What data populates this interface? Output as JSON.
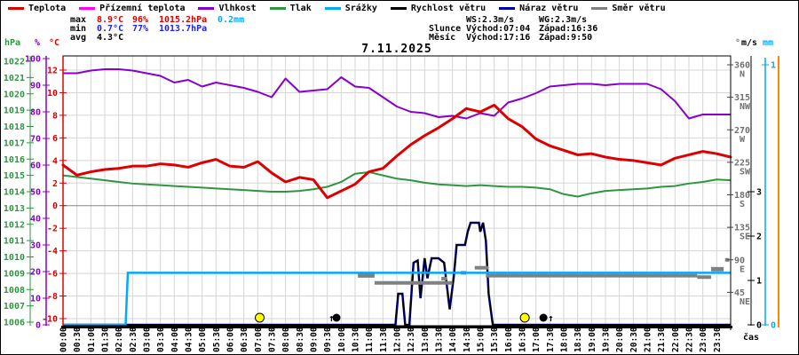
{
  "title": "7.11.2025",
  "colors": {
    "temperature": "#dd0000",
    "ground_temperature": "#ff00ff",
    "humidity": "#8800cc",
    "pressure": "#2e9640",
    "rain": "#00aaff",
    "wind_speed": "#000000",
    "wind_gust": "#0000aa",
    "wind_direction": "#808080",
    "stat_max": "#dd0000",
    "stat_min": "#2222ee",
    "stat_text": "#000000",
    "sun_marker": "#ffff00",
    "moon_marker": "#000000",
    "extra_axis_orange": "#ff8800",
    "grid": "#d6d6d6",
    "zero_line": "#888888",
    "axis_dir_text": "#707070"
  },
  "legend": {
    "items": [
      {
        "label": "Teplota",
        "color_key": "temperature"
      },
      {
        "label": "Přízemní teplota",
        "color_key": "ground_temperature"
      },
      {
        "label": "Vlhkost",
        "color_key": "humidity"
      },
      {
        "label": "Tlak",
        "color_key": "pressure"
      },
      {
        "label": "Srážky",
        "color_key": "rain"
      },
      {
        "label": "Rychlost větru",
        "color_key": "wind_speed"
      },
      {
        "label": "Náraz větru",
        "color_key": "wind_gust"
      },
      {
        "label": "Směr větru",
        "color_key": "wind_direction"
      }
    ]
  },
  "stats": {
    "left_rows": [
      {
        "label": "max",
        "values": [
          {
            "text": "8.9°C",
            "color_key": "stat_max",
            "cls": "w-t"
          },
          {
            "text": "96%",
            "color_key": "stat_max",
            "cls": "w-h"
          },
          {
            "text": "1015.2hPa",
            "color_key": "stat_max",
            "cls": "w-p"
          },
          {
            "text": "0.2mm",
            "color_key": "rain",
            "cls": ""
          }
        ]
      },
      {
        "label": "min",
        "values": [
          {
            "text": "0.7°C",
            "color_key": "stat_min",
            "cls": "w-t"
          },
          {
            "text": "77%",
            "color_key": "stat_min",
            "cls": "w-h"
          },
          {
            "text": "1013.7hPa",
            "color_key": "stat_min",
            "cls": "w-p"
          }
        ]
      },
      {
        "label": "avg",
        "values": [
          {
            "text": "4.3°C",
            "color_key": "stat_text",
            "cls": "w-t"
          }
        ]
      }
    ],
    "right_rows": [
      {
        "label": "",
        "col1": "WS:2.3m/s",
        "col2": "WG:2.3m/s"
      },
      {
        "label": "Slunce",
        "col1": "Východ:07:04",
        "col2": "Západ:16:36"
      },
      {
        "label": "Měsíc",
        "col1": "Východ:17:16",
        "col2": "Západ:9:50"
      }
    ]
  },
  "chart_data": {
    "type": "line",
    "title": "7.11.2025",
    "x_axis_label": "čas",
    "x_hours_range": [
      0,
      24
    ],
    "x_tick_labels": [
      "00:00",
      "00:30",
      "01:00",
      "01:30",
      "02:00",
      "02:30",
      "03:00",
      "03:30",
      "04:00",
      "04:30",
      "05:00",
      "05:30",
      "06:00",
      "06:30",
      "07:00",
      "07:30",
      "08:00",
      "08:30",
      "09:00",
      "09:30",
      "10:00",
      "10:30",
      "11:00",
      "11:30",
      "12:00",
      "12:30",
      "13:00",
      "13:30",
      "14:00",
      "14:30",
      "15:00",
      "15:30",
      "16:00",
      "16:30",
      "17:00",
      "17:30",
      "18:00",
      "18:30",
      "19:00",
      "19:30",
      "20:00",
      "20:30",
      "21:00",
      "21:30",
      "22:00",
      "22:30",
      "23:00",
      "23:30"
    ],
    "axes": {
      "temperature": {
        "title": "°C",
        "min": -10,
        "max": 12,
        "step": 2
      },
      "humidity": {
        "title": "%",
        "min": 0,
        "max": 100,
        "step": 10
      },
      "pressure": {
        "title": "hPa",
        "min": 1006,
        "max": 1022,
        "step": 1
      },
      "wind": {
        "title": "m/s",
        "ticks": [
          0,
          1,
          2,
          3
        ]
      },
      "rain": {
        "title": "mm",
        "ticks": [
          0,
          1
        ]
      },
      "direction": {
        "title": "°",
        "ticks": [
          {
            "deg": 360,
            "label": "N"
          },
          {
            "deg": 315,
            "label": "NW"
          },
          {
            "deg": 270,
            "label": "W"
          },
          {
            "deg": 225,
            "label": "SW"
          },
          {
            "deg": 180,
            "label": "S"
          },
          {
            "deg": 135,
            "label": "SE"
          },
          {
            "deg": 90,
            "label": "E"
          },
          {
            "deg": 45,
            "label": "NE"
          }
        ]
      }
    },
    "series": {
      "temperature": {
        "name": "Teplota",
        "unit": "°C",
        "step_hours": 0.5,
        "values": [
          3.6,
          2.7,
          3.0,
          3.2,
          3.3,
          3.5,
          3.5,
          3.7,
          3.6,
          3.4,
          3.8,
          4.1,
          3.5,
          3.4,
          3.9,
          2.9,
          2.1,
          2.5,
          2.3,
          0.7,
          1.3,
          1.9,
          3.0,
          3.3,
          4.4,
          5.4,
          6.2,
          6.9,
          7.7,
          8.6,
          8.3,
          8.9,
          7.7,
          7.0,
          5.9,
          5.3,
          4.9,
          4.5,
          4.6,
          4.3,
          4.1,
          4.0,
          3.8,
          3.6,
          4.2,
          4.5,
          4.8,
          4.6,
          4.3
        ]
      },
      "ground_temperature": {
        "name": "Přízemní teplota",
        "unit": "°C",
        "values": []
      },
      "humidity": {
        "name": "Vlhkost",
        "unit": "%",
        "step_hours": 0.5,
        "values": [
          94.5,
          94.5,
          95.5,
          96,
          96,
          95.5,
          94.5,
          93.5,
          91,
          92,
          89.5,
          91,
          90,
          89,
          87.5,
          85.5,
          92.5,
          87.5,
          88,
          88.5,
          93,
          89.5,
          89,
          85.5,
          82,
          80,
          79.5,
          78,
          78.5,
          77.5,
          79.5,
          78.5,
          83.5,
          85,
          87,
          89.5,
          90,
          90.5,
          90.5,
          90,
          90.5,
          90.5,
          90.5,
          88.5,
          84,
          77.5,
          79,
          79,
          79
        ]
      },
      "pressure": {
        "name": "Tlak",
        "unit": "hPa",
        "step_hours": 0.5,
        "values": [
          1015.0,
          1014.9,
          1014.8,
          1014.7,
          1014.6,
          1014.5,
          1014.45,
          1014.4,
          1014.35,
          1014.3,
          1014.25,
          1014.2,
          1014.15,
          1014.1,
          1014.05,
          1014.0,
          1014.0,
          1014.05,
          1014.15,
          1014.3,
          1014.6,
          1015.1,
          1015.2,
          1015.0,
          1014.8,
          1014.7,
          1014.55,
          1014.45,
          1014.4,
          1014.35,
          1014.4,
          1014.35,
          1014.3,
          1014.3,
          1014.25,
          1014.15,
          1013.85,
          1013.7,
          1013.9,
          1014.05,
          1014.1,
          1014.15,
          1014.2,
          1014.3,
          1014.35,
          1014.5,
          1014.6,
          1014.75,
          1014.7
        ]
      },
      "rain_cumulative": {
        "name": "Srážky",
        "unit": "mm",
        "points": [
          [
            0,
            0
          ],
          [
            2.25,
            0
          ],
          [
            2.33,
            0.2
          ],
          [
            24,
            0.2
          ]
        ]
      },
      "wind_speed": {
        "name": "Rychlost větru",
        "unit": "m/s",
        "points": [
          [
            0,
            0
          ],
          [
            11.95,
            0
          ],
          [
            12.05,
            0.7
          ],
          [
            12.2,
            0.7
          ],
          [
            12.3,
            0
          ],
          [
            12.45,
            0
          ],
          [
            12.6,
            1.4
          ],
          [
            12.75,
            1.45
          ],
          [
            12.85,
            0.6
          ],
          [
            13.0,
            1.5
          ],
          [
            13.1,
            1.05
          ],
          [
            13.25,
            1.5
          ],
          [
            13.5,
            1.5
          ],
          [
            13.7,
            1.4
          ],
          [
            13.9,
            0.35
          ],
          [
            14.05,
            1.1
          ],
          [
            14.15,
            1.8
          ],
          [
            14.45,
            1.8
          ],
          [
            14.55,
            2.1
          ],
          [
            14.65,
            2.3
          ],
          [
            14.95,
            2.3
          ],
          [
            15.0,
            2.1
          ],
          [
            15.1,
            2.3
          ],
          [
            15.2,
            1.9
          ],
          [
            15.3,
            0.7
          ],
          [
            15.45,
            0
          ],
          [
            24,
            0
          ]
        ]
      },
      "wind_gust": {
        "name": "Náraz větru",
        "unit": "m/s",
        "points": [
          [
            0,
            0
          ],
          [
            11.95,
            0
          ],
          [
            12.05,
            0.7
          ],
          [
            12.2,
            0.7
          ],
          [
            12.3,
            0
          ],
          [
            12.45,
            0
          ],
          [
            12.6,
            1.4
          ],
          [
            12.75,
            1.45
          ],
          [
            12.85,
            0.6
          ],
          [
            13.0,
            1.5
          ],
          [
            13.1,
            1.05
          ],
          [
            13.25,
            1.5
          ],
          [
            13.5,
            1.5
          ],
          [
            13.7,
            1.4
          ],
          [
            13.9,
            0.35
          ],
          [
            14.05,
            1.1
          ],
          [
            14.15,
            1.8
          ],
          [
            14.45,
            1.8
          ],
          [
            14.55,
            2.1
          ],
          [
            14.65,
            2.3
          ],
          [
            14.95,
            2.3
          ],
          [
            15.0,
            2.1
          ],
          [
            15.1,
            2.3
          ],
          [
            15.2,
            1.9
          ],
          [
            15.3,
            0.7
          ],
          [
            15.45,
            0
          ],
          [
            24,
            0
          ]
        ]
      },
      "wind_direction": {
        "name": "Směr větru",
        "unit": "°",
        "segments": [
          {
            "from": 10.6,
            "to": 11.2,
            "deg": 69,
            "w": 6
          },
          {
            "from": 11.2,
            "to": 14.0,
            "deg": 58,
            "w": 4
          },
          {
            "from": 13.6,
            "to": 13.8,
            "deg": 64,
            "w": 4
          },
          {
            "from": 14.3,
            "to": 14.5,
            "deg": 72,
            "w": 4
          },
          {
            "from": 14.8,
            "to": 15.3,
            "deg": 79,
            "w": 4
          },
          {
            "from": 15.2,
            "to": 22.8,
            "deg": 68,
            "w": 4
          },
          {
            "from": 22.8,
            "to": 23.3,
            "deg": 66,
            "w": 4
          },
          {
            "from": 23.3,
            "to": 23.75,
            "deg": 77,
            "w": 5
          },
          {
            "from": 23.8,
            "to": 23.95,
            "deg": 90,
            "w": 4
          }
        ]
      }
    },
    "markers": {
      "sun": {
        "rise": {
          "label": "07:04",
          "hour": 7.07
        },
        "set": {
          "label": "16:36",
          "hour": 16.6
        }
      },
      "moon": {
        "rise": {
          "label": "17:16",
          "hour": 17.27
        },
        "set": {
          "label": "9:50",
          "hour": 9.83
        }
      }
    }
  }
}
